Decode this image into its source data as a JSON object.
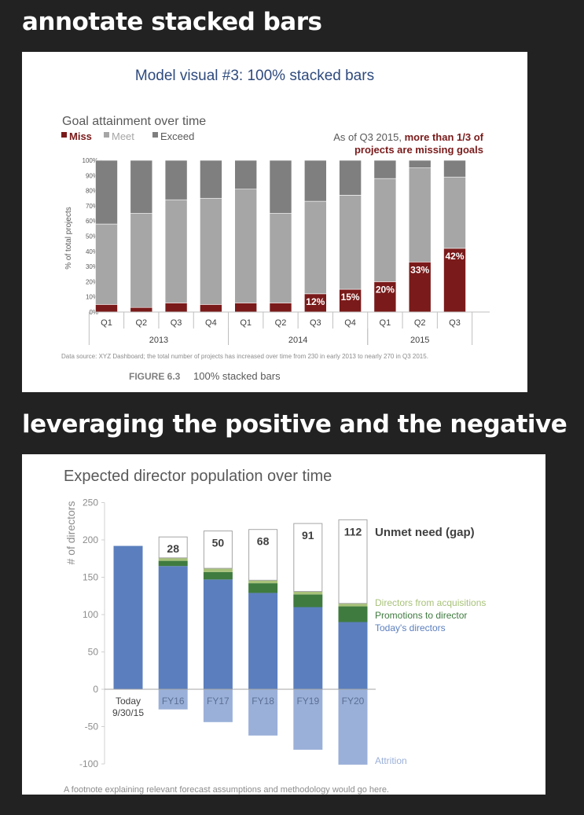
{
  "headings": {
    "first": "annotate stacked bars",
    "second": "leveraging the positive and the negative"
  },
  "panel1": {
    "model_title": "Model visual #3: 100% stacked bars",
    "figure_label": "FIGURE 6.3",
    "figure_caption": "100% stacked bars"
  },
  "colors": {
    "miss": "#7a1a1a",
    "meet": "#a6a6a6",
    "exceed": "#7f7f7f",
    "todays": "#5b7fbe",
    "promotions": "#3f7b3f",
    "acquisitions": "#a8c27a",
    "attrition": "#9bb0d8",
    "model_title": "#2e4a7d"
  },
  "chart_data": [
    {
      "type": "bar",
      "stacked": "100%",
      "title": "Goal attainment over time",
      "ylabel": "% of total projects",
      "ylim": [
        0,
        100
      ],
      "yticks": [
        "0%",
        "10%",
        "20%",
        "30%",
        "40%",
        "50%",
        "60%",
        "70%",
        "80%",
        "90%",
        "100%"
      ],
      "categories": [
        "Q1",
        "Q2",
        "Q3",
        "Q4",
        "Q1",
        "Q2",
        "Q3",
        "Q4",
        "Q1",
        "Q2",
        "Q3"
      ],
      "years": [
        {
          "label": "2013",
          "from": 0,
          "to": 3
        },
        {
          "label": "2014",
          "from": 4,
          "to": 7
        },
        {
          "label": "2015",
          "from": 8,
          "to": 10
        }
      ],
      "series": [
        {
          "name": "Miss",
          "values": [
            5,
            3,
            6,
            5,
            6,
            6,
            12,
            15,
            20,
            33,
            42
          ]
        },
        {
          "name": "Meet",
          "values": [
            53,
            62,
            68,
            70,
            75,
            59,
            61,
            62,
            68,
            62,
            47
          ]
        },
        {
          "name": "Exceed",
          "values": [
            42,
            35,
            26,
            25,
            19,
            35,
            27,
            23,
            12,
            5,
            11
          ]
        }
      ],
      "data_labels": [
        "",
        "",
        "",
        "",
        "",
        "",
        "12%",
        "15%",
        "20%",
        "33%",
        "42%"
      ],
      "legend": [
        "Miss",
        "Meet",
        "Exceed"
      ],
      "legend_position": "top-left",
      "annotation_prefix": "As of Q3 2015, ",
      "annotation_emphasis_1": "more than 1/3 of",
      "annotation_emphasis_2": "projects are missing goals",
      "source_note": "Data source: XYZ Dashboard; the total number of projects has increased over time from 230 in early 2013 to nearly 270 in Q3 2015."
    },
    {
      "type": "bar",
      "stacked": true,
      "title": "Expected director population over time",
      "ylabel": "# of directors",
      "ylim": [
        -100,
        250
      ],
      "yticks": [
        "-100",
        "-50",
        "0",
        "50",
        "100",
        "150",
        "200",
        "250"
      ],
      "categories": [
        "Today",
        "FY16",
        "FY17",
        "FY18",
        "FY19",
        "FY20"
      ],
      "first_category_sub": "9/30/15",
      "series": [
        {
          "name": "Today's directors",
          "values": [
            192,
            165,
            147,
            129,
            110,
            90
          ]
        },
        {
          "name": "Promotions to director",
          "values": [
            0,
            7,
            10,
            13,
            17,
            21
          ]
        },
        {
          "name": "Directors from acquisitions",
          "values": [
            0,
            4,
            5,
            4,
            4,
            4
          ]
        },
        {
          "name": "Unmet need (gap)",
          "values": [
            0,
            28,
            50,
            68,
            91,
            112
          ]
        },
        {
          "name": "Attrition",
          "values": [
            0,
            -27,
            -44,
            -62,
            -81,
            -101
          ]
        }
      ],
      "gap_labels": [
        "",
        "28",
        "50",
        "68",
        "91",
        "112"
      ],
      "footnote": "A footnote explaining relevant forecast assumptions and methodology would go here."
    }
  ]
}
